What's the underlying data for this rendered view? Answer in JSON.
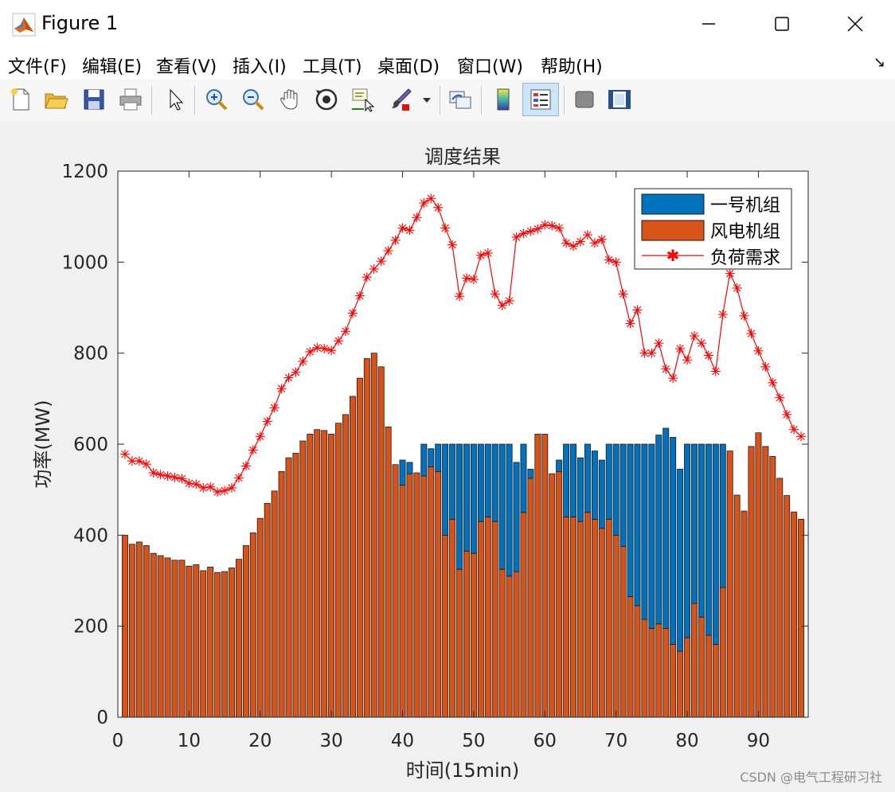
{
  "window": {
    "title": "Figure 1",
    "controls": {
      "minimize": "—",
      "maximize": "☐",
      "close": "✕"
    }
  },
  "menu": {
    "items": [
      "文件(F)",
      "编辑(E)",
      "查看(V)",
      "插入(I)",
      "工具(T)",
      "桌面(D)",
      "窗口(W)",
      "帮助(H)"
    ],
    "dock_arrow": "↘"
  },
  "toolbar": {
    "icons": [
      "new-file-icon",
      "open-folder-icon",
      "save-icon",
      "print-icon",
      "pointer-icon",
      "zoom-in-icon",
      "zoom-out-icon",
      "pan-hand-icon",
      "rotate-3d-icon",
      "data-cursor-icon",
      "brush-icon",
      "link-plot-icon",
      "colorbar-icon",
      "legend-icon",
      "hide-plot-tools-icon",
      "show-plot-tools-icon"
    ]
  },
  "colors": {
    "unit1": "#0072BD",
    "wind": "#D95319",
    "demand": "#FF0000",
    "figure_bg": "#F0F0F0",
    "axes_bg": "#FFFFFF"
  },
  "chart_data": {
    "type": "bar",
    "stacked": true,
    "title": "调度结果",
    "xlabel": "时间(15min)",
    "ylabel": "功率(MW)",
    "xlim": [
      0,
      97
    ],
    "ylim": [
      0,
      1200
    ],
    "xticks": [
      0,
      10,
      20,
      30,
      40,
      50,
      60,
      70,
      80,
      90
    ],
    "yticks": [
      0,
      200,
      400,
      600,
      800,
      1000,
      1200
    ],
    "legend_position": "top-right",
    "legend": [
      "一号机组",
      "风电机组",
      "负荷需求"
    ],
    "grid": false,
    "x": [
      1,
      2,
      3,
      4,
      5,
      6,
      7,
      8,
      9,
      10,
      11,
      12,
      13,
      14,
      15,
      16,
      17,
      18,
      19,
      20,
      21,
      22,
      23,
      24,
      25,
      26,
      27,
      28,
      29,
      30,
      31,
      32,
      33,
      34,
      35,
      36,
      37,
      38,
      39,
      40,
      41,
      42,
      43,
      44,
      45,
      46,
      47,
      48,
      49,
      50,
      51,
      52,
      53,
      54,
      55,
      56,
      57,
      58,
      59,
      60,
      61,
      62,
      63,
      64,
      65,
      66,
      67,
      68,
      69,
      70,
      71,
      72,
      73,
      74,
      75,
      76,
      77,
      78,
      79,
      80,
      81,
      82,
      83,
      84,
      85,
      86,
      87,
      88,
      89,
      90,
      91,
      92,
      93,
      94,
      95,
      96
    ],
    "series": [
      {
        "name": "一号机组",
        "kind": "bar",
        "values": [
          0,
          0,
          0,
          0,
          0,
          0,
          0,
          0,
          0,
          0,
          0,
          0,
          0,
          0,
          0,
          0,
          0,
          0,
          0,
          0,
          0,
          0,
          0,
          0,
          0,
          0,
          0,
          0,
          0,
          0,
          0,
          0,
          0,
          0,
          0,
          0,
          0,
          0,
          0,
          55,
          25,
          0,
          70,
          40,
          60,
          200,
          165,
          275,
          235,
          240,
          170,
          160,
          170,
          275,
          290,
          240,
          150,
          20,
          0,
          0,
          0,
          25,
          160,
          160,
          140,
          150,
          150,
          150,
          165,
          200,
          225,
          335,
          355,
          385,
          405,
          415,
          440,
          455,
          400,
          425,
          350,
          380,
          420,
          440,
          315,
          0,
          0,
          0,
          0,
          0,
          0,
          0,
          0,
          0,
          0,
          0
        ]
      },
      {
        "name": "风电机组",
        "kind": "bar",
        "values": [
          400,
          380,
          385,
          377,
          360,
          355,
          350,
          345,
          345,
          332,
          335,
          322,
          330,
          318,
          320,
          328,
          347,
          377,
          405,
          437,
          470,
          497,
          540,
          570,
          580,
          607,
          622,
          632,
          630,
          622,
          646,
          665,
          705,
          745,
          788,
          800,
          770,
          638,
          555,
          510,
          535,
          537,
          530,
          550,
          540,
          400,
          435,
          325,
          365,
          360,
          430,
          440,
          430,
          325,
          310,
          320,
          450,
          525,
          622,
          622,
          535,
          540,
          440,
          440,
          430,
          450,
          435,
          415,
          435,
          400,
          375,
          265,
          245,
          215,
          195,
          205,
          195,
          160,
          145,
          175,
          250,
          220,
          180,
          160,
          285,
          585,
          488,
          453,
          595,
          625,
          595,
          573,
          525,
          487,
          451,
          435
        ]
      },
      {
        "name": "负荷需求",
        "kind": "line-marker",
        "marker": "*",
        "values": [
          578,
          563,
          563,
          556,
          537,
          533,
          530,
          527,
          524,
          514,
          512,
          504,
          506,
          495,
          498,
          504,
          526,
          552,
          587,
          617,
          650,
          680,
          722,
          746,
          758,
          782,
          803,
          812,
          810,
          806,
          827,
          848,
          888,
          926,
          967,
          985,
          1002,
          1025,
          1048,
          1075,
          1070,
          1098,
          1130,
          1140,
          1120,
          1075,
          1038,
          925,
          965,
          962,
          1015,
          1020,
          930,
          905,
          915,
          1055,
          1063,
          1068,
          1073,
          1082,
          1080,
          1075,
          1042,
          1035,
          1045,
          1060,
          1042,
          1050,
          1005,
          1000,
          930,
          865,
          895,
          800,
          800,
          822,
          765,
          745,
          810,
          785,
          838,
          822,
          795,
          760,
          885,
          975,
          943,
          882,
          843,
          805,
          770,
          735,
          702,
          665,
          632,
          617
        ]
      }
    ]
  },
  "watermark": "CSDN @电气工程研习社"
}
